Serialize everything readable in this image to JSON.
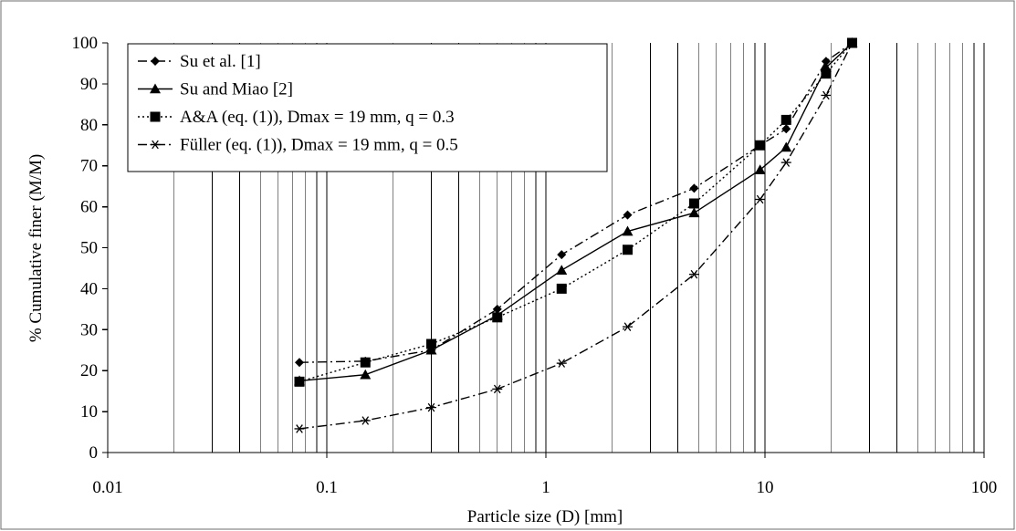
{
  "chart_data": {
    "type": "line",
    "xlabel": "Particle size (D) [mm]",
    "ylabel": "% Cumulative finer (M/M)",
    "xscale": "log",
    "xlim": [
      0.01,
      100
    ],
    "ylim": [
      0,
      100
    ],
    "x_ticks": [
      0.01,
      0.1,
      1,
      10,
      100
    ],
    "x_tick_labels": [
      "0.01",
      "0.1",
      "1",
      "10",
      "100"
    ],
    "y_ticks": [
      0,
      10,
      20,
      30,
      40,
      50,
      60,
      70,
      80,
      90,
      100
    ],
    "y_tick_labels": [
      "0",
      "10",
      "20",
      "30",
      "40",
      "50",
      "60",
      "70",
      "80",
      "90",
      "100"
    ],
    "grid": "vertical log minor + major, horizontal none",
    "legend_position": "top-left",
    "series": [
      {
        "name": "Su et al. [1]",
        "marker": "diamond",
        "line_style": "dash-dot",
        "color": "#000000",
        "x": [
          0.075,
          0.15,
          0.3,
          0.6,
          1.18,
          2.36,
          4.75,
          9.5,
          12.5,
          19,
          25
        ],
        "y": [
          22,
          22.3,
          25,
          35,
          48.3,
          58,
          64.5,
          75,
          79,
          95.5,
          100
        ]
      },
      {
        "name": "Su and Miao [2]",
        "marker": "triangle",
        "line_style": "solid",
        "color": "#000000",
        "x": [
          0.075,
          0.15,
          0.3,
          0.6,
          1.18,
          2.36,
          4.75,
          9.5,
          12.5,
          19,
          25
        ],
        "y": [
          17.5,
          19,
          25,
          33.5,
          44.5,
          54,
          58.5,
          69,
          74.5,
          94,
          100
        ]
      },
      {
        "name": "A&A (eq. (1)), Dmax = 19 mm, q = 0.3",
        "marker": "square",
        "line_style": "dotted",
        "color": "#000000",
        "x": [
          0.075,
          0.15,
          0.3,
          0.6,
          1.18,
          2.36,
          4.75,
          9.5,
          12.5,
          19,
          25
        ],
        "y": [
          17.3,
          22,
          26.5,
          33,
          40,
          49.5,
          60.8,
          75,
          81.2,
          92.5,
          100
        ]
      },
      {
        "name": "Füller (eq. (1)), Dmax = 19 mm, q = 0.5",
        "marker": "asterisk",
        "line_style": "dash-dot",
        "color": "#000000",
        "x": [
          0.075,
          0.15,
          0.3,
          0.6,
          1.18,
          2.36,
          4.75,
          9.5,
          12.5,
          19,
          25
        ],
        "y": [
          5.8,
          7.8,
          11,
          15.5,
          21.8,
          30.7,
          43.5,
          61.8,
          70.8,
          87.2,
          100
        ]
      }
    ]
  }
}
